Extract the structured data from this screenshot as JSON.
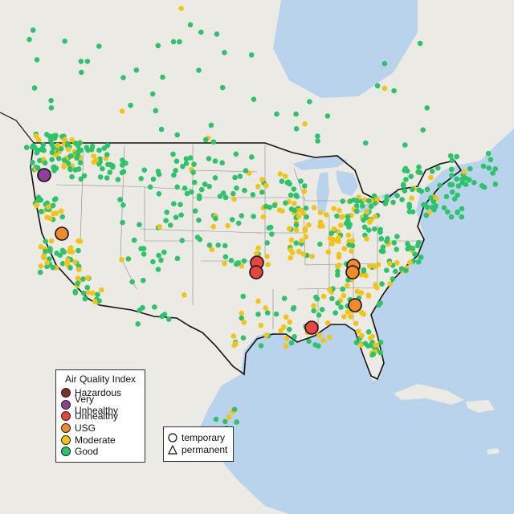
{
  "legend": {
    "title": "Air Quality Index",
    "categories": [
      {
        "label": "Hazardous",
        "color": "#7e2f2b"
      },
      {
        "label": "Very Unhealthy",
        "color": "#8f3f97"
      },
      {
        "label": "Unhealthy",
        "color": "#e8453c"
      },
      {
        "label": "USG",
        "color": "#f08a2a"
      },
      {
        "label": "Moderate",
        "color": "#f3c317"
      },
      {
        "label": "Good",
        "color": "#2cc36b"
      }
    ]
  },
  "monitor_types": {
    "temporary": "temporary",
    "permanent": "permanent"
  },
  "colors": {
    "ocean": "#b9d3ec",
    "land": "#eceae4",
    "border": "#111111",
    "state_lines": "#8a8a8a",
    "no_data": "#bdbdbd"
  }
}
